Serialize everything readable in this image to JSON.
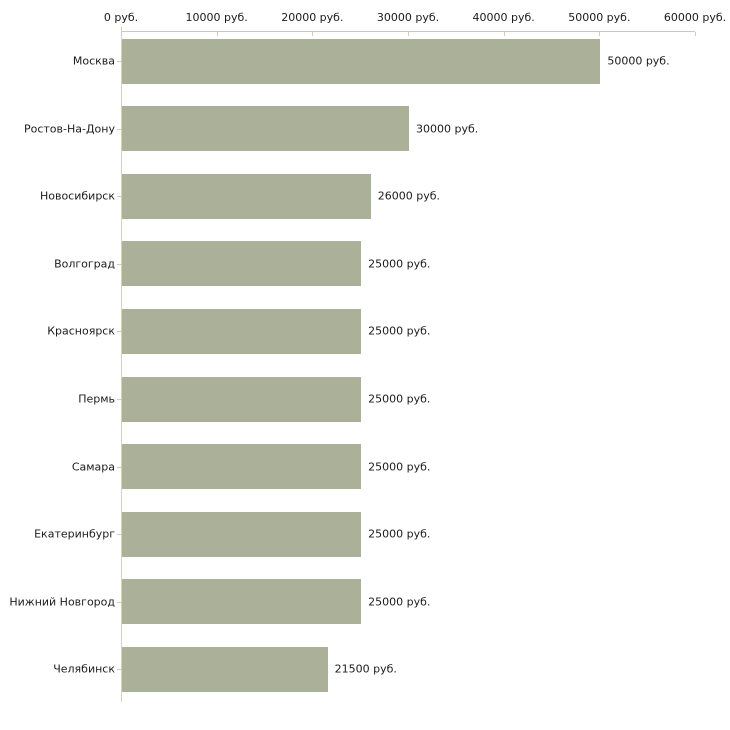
{
  "chart_data": {
    "type": "bar",
    "orientation": "horizontal",
    "categories": [
      "Москва",
      "Ростов-На-Дону",
      "Новосибирск",
      "Волгоград",
      "Красноярск",
      "Пермь",
      "Самара",
      "Екатеринбург",
      "Нижний Новгород",
      "Челябинск"
    ],
    "values": [
      50000,
      30000,
      26000,
      25000,
      25000,
      25000,
      25000,
      25000,
      25000,
      21500
    ],
    "value_labels": [
      "50000 руб.",
      "30000 руб.",
      "26000 руб.",
      "25000 руб.",
      "25000 руб.",
      "25000 руб.",
      "25000 руб.",
      "25000 руб.",
      "25000 руб.",
      "21500 руб."
    ],
    "x_tick_labels": [
      "0 руб.",
      "10000 руб.",
      "20000 руб.",
      "30000 руб.",
      "40000 руб.",
      "50000 руб.",
      "60000 руб."
    ],
    "x_tick_values": [
      0,
      10000,
      20000,
      30000,
      40000,
      50000,
      60000
    ],
    "xlim": [
      0,
      60000
    ],
    "title": "",
    "xlabel": "",
    "ylabel": "",
    "grid": false,
    "legend": "none",
    "colors": {
      "bar": "#abb199",
      "axis_line": "#c9c9c9",
      "tick_mark": "#d2cfae",
      "zero_line": "#d5d2b6",
      "text": "#1c1c1c",
      "background": "#ffffff"
    }
  }
}
